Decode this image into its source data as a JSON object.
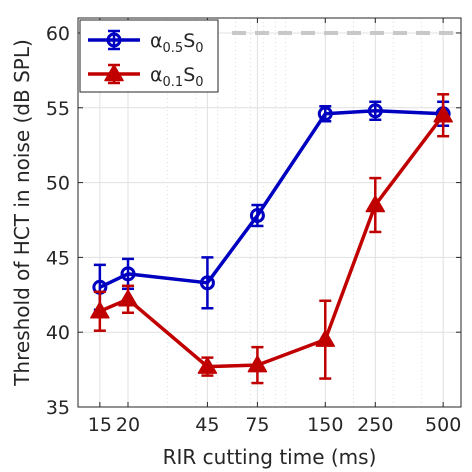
{
  "chart_data": {
    "type": "line",
    "xlabel": "RIR cutting time (ms)",
    "ylabel": "Threshold of HCT in noise (dB SPL)",
    "x_scale": "log",
    "xlim": [
      12,
      600
    ],
    "ylim": [
      35,
      61
    ],
    "grid": true,
    "legend_position": "top-left",
    "x_ticks": [
      15,
      20,
      45,
      75,
      150,
      250,
      500
    ],
    "x_tick_labels": [
      "15",
      "20",
      "45",
      "75",
      "150",
      "250",
      "500"
    ],
    "y_ticks": [
      35,
      40,
      45,
      50,
      55,
      60
    ],
    "y_tick_labels": [
      "35",
      "40",
      "45",
      "50",
      "55",
      "60"
    ],
    "reference_line": {
      "y": 60,
      "color": "#c8c8c8",
      "style": "dashed"
    },
    "series": [
      {
        "name_prefix": "α",
        "name_sub_a": "0.5",
        "name_mid": "S",
        "name_sub_b": "0",
        "color": "#0000c0",
        "marker": "circle",
        "x": [
          15,
          20,
          45,
          75,
          150,
          250,
          500
        ],
        "y": [
          43.0,
          43.9,
          43.3,
          47.8,
          54.6,
          54.8,
          54.6
        ],
        "err": [
          1.5,
          1.0,
          1.7,
          0.7,
          0.5,
          0.6,
          0.8
        ]
      },
      {
        "name_prefix": "α",
        "name_sub_a": "0.1",
        "name_mid": "S",
        "name_sub_b": "0",
        "color": "#c00000",
        "marker": "triangle",
        "x": [
          15,
          20,
          45,
          75,
          150,
          250,
          500
        ],
        "y": [
          41.4,
          42.2,
          37.7,
          37.8,
          39.5,
          48.5,
          54.5
        ],
        "err": [
          1.3,
          0.9,
          0.6,
          1.2,
          2.6,
          1.8,
          1.4
        ]
      }
    ]
  }
}
